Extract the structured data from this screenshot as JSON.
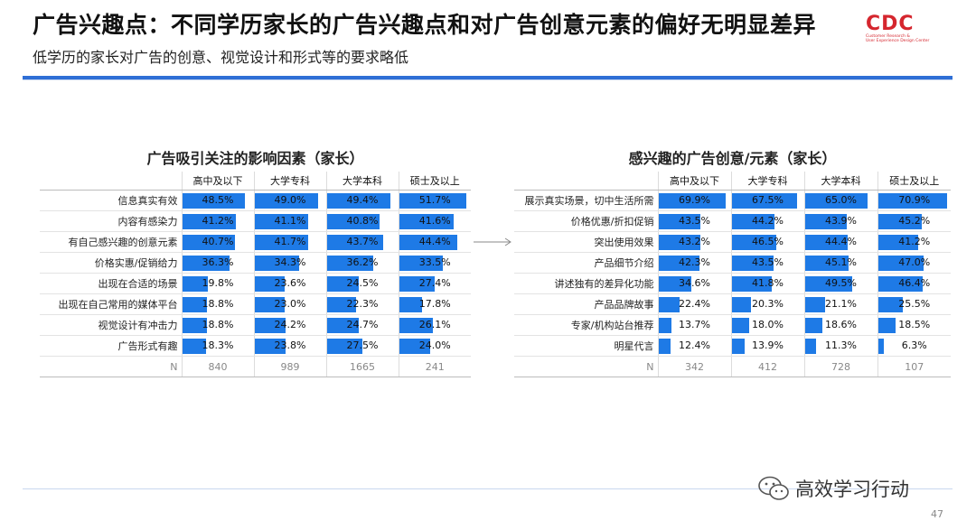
{
  "header": {
    "title": "广告兴趣点：不同学历家长的广告兴趣点和对广告创意元素的偏好无明显差异",
    "subtitle": "低学历的家长对广告的创意、视觉设计和形式等的要求略低",
    "logo": {
      "mark": "CDC",
      "line1": "Customer Research &",
      "line2": "User Experience Design Center"
    }
  },
  "footer": {
    "page_number": "47",
    "watermark": "高效学习行动"
  },
  "colors": {
    "bar": "#1e7ae6",
    "accent_rule": "#2f6fd6",
    "logo": "#d5262e"
  },
  "chart_data": [
    {
      "type": "table",
      "title": "广告吸引关注的影响因素（家长）",
      "columns": [
        "高中及以下",
        "大学专科",
        "大学本科",
        "硕士及以上"
      ],
      "rows": [
        {
          "label": "信息真实有效",
          "values": [
            48.5,
            49.0,
            49.4,
            51.7
          ]
        },
        {
          "label": "内容有感染力",
          "values": [
            41.2,
            41.1,
            40.8,
            41.6
          ]
        },
        {
          "label": "有自己感兴趣的创意元素",
          "values": [
            40.7,
            41.7,
            43.7,
            44.4
          ]
        },
        {
          "label": "价格实惠/促销给力",
          "values": [
            36.3,
            34.3,
            36.2,
            33.5
          ]
        },
        {
          "label": "出现在合适的场景",
          "values": [
            19.8,
            23.6,
            24.5,
            27.4
          ]
        },
        {
          "label": "出现在自己常用的媒体平台",
          "values": [
            18.8,
            23.0,
            22.3,
            17.8
          ]
        },
        {
          "label": "视觉设计有冲击力",
          "values": [
            18.8,
            24.2,
            24.7,
            26.1
          ]
        },
        {
          "label": "广告形式有趣",
          "values": [
            18.3,
            23.8,
            27.5,
            24.0
          ]
        }
      ],
      "n_label": "N",
      "n": [
        "840",
        "989",
        "1665",
        "241"
      ],
      "scale_max": 55
    },
    {
      "type": "table",
      "title": "感兴趣的广告创意/元素（家长）",
      "columns": [
        "高中及以下",
        "大学专科",
        "大学本科",
        "硕士及以上"
      ],
      "rows": [
        {
          "label": "展示真实场景，切中生活所需",
          "values": [
            69.9,
            67.5,
            65.0,
            70.9
          ]
        },
        {
          "label": "价格优惠/折扣促销",
          "values": [
            43.5,
            44.2,
            43.9,
            45.2
          ]
        },
        {
          "label": "突出使用效果",
          "values": [
            43.2,
            46.5,
            44.4,
            41.2
          ]
        },
        {
          "label": "产品细节介绍",
          "values": [
            42.3,
            43.5,
            45.1,
            47.0
          ]
        },
        {
          "label": "讲述独有的差异化功能",
          "values": [
            34.6,
            41.8,
            49.5,
            46.4
          ]
        },
        {
          "label": "产品品牌故事",
          "values": [
            22.4,
            20.3,
            21.1,
            25.5
          ]
        },
        {
          "label": "专家/机构站台推荐",
          "values": [
            13.7,
            18.0,
            18.6,
            18.5
          ]
        },
        {
          "label": "明星代言",
          "values": [
            12.4,
            13.9,
            11.3,
            6.3
          ]
        }
      ],
      "n_label": "N",
      "n": [
        "342",
        "412",
        "728",
        "107"
      ],
      "scale_max": 75
    }
  ]
}
